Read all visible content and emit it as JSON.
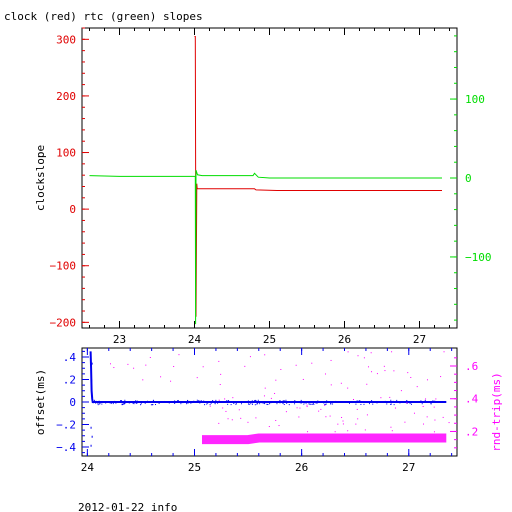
{
  "figure": {
    "title": "clock (red) rtc (green) slopes",
    "footer": "2012-01-22 info",
    "colors": {
      "clock": "#e00000",
      "rtc": "#00dd00",
      "offset": "#0000ee",
      "rtt": "#ff00ff",
      "axis": "#000000"
    }
  },
  "chart_data": [
    {
      "type": "line",
      "title": "clock (red) rtc (green) slopes",
      "xlabel": "",
      "ylabel": "clockslope",
      "y2label": "",
      "xlim": [
        22.5,
        27.5
      ],
      "ylim": [
        -210,
        320
      ],
      "y2lim": [
        -190,
        190
      ],
      "xticks": [
        23,
        24,
        25,
        26,
        27
      ],
      "yticks": [
        -200,
        -100,
        0,
        100,
        200,
        300
      ],
      "y2ticks": [
        -100,
        0,
        100
      ],
      "grid": false,
      "series": [
        {
          "color": "#e00000",
          "axis": "left",
          "x": [
            24.0,
            24.01,
            24.02,
            24.03,
            24.035,
            24.04,
            24.3,
            24.6,
            24.8,
            24.82,
            25.1,
            25.5,
            26.0,
            26.5,
            27.0,
            27.3
          ],
          "y": [
            305,
            305,
            -190,
            45,
            38,
            36,
            36,
            36,
            36,
            34,
            33,
            33,
            33,
            33,
            33,
            33
          ]
        },
        {
          "color": "#00dd00",
          "axis": "right",
          "x": [
            22.6,
            23.0,
            23.5,
            24.0,
            24.01,
            24.015,
            24.02,
            24.04,
            24.1,
            24.5,
            24.78,
            24.8,
            24.85,
            25.0,
            25.5,
            26.0,
            26.5,
            27.0,
            27.3
          ],
          "y": [
            3,
            2,
            2,
            2,
            2,
            -185,
            10,
            4,
            3,
            3,
            3,
            6,
            1,
            0,
            0,
            0,
            0,
            0,
            0
          ]
        }
      ]
    },
    {
      "type": "scatter",
      "title": "",
      "xlabel": "",
      "ylabel": "offset(ms)",
      "y2label": "rnd-trip(ms)",
      "xlim": [
        23.95,
        27.45
      ],
      "ylim": [
        -0.48,
        0.48
      ],
      "y2lim": [
        0.05,
        0.71
      ],
      "xticks": [
        24,
        25,
        26,
        27
      ],
      "yticks": [
        -0.4,
        -0.2,
        0,
        0.2,
        0.4
      ],
      "y2ticks": [
        0.2,
        0.4,
        0.6
      ],
      "grid": false,
      "series": [
        {
          "color": "#0000ee",
          "axis": "left",
          "x": [
            24.03,
            24.035,
            24.04,
            24.045,
            24.05,
            24.1,
            24.5,
            25.0,
            25.5,
            26.0,
            26.5,
            27.0,
            27.35
          ],
          "y": [
            0.45,
            0.3,
            0.1,
            0.03,
            0.0,
            0.0,
            0.0,
            0.0,
            0.0,
            0.0,
            0.0,
            0.0,
            0.0
          ]
        },
        {
          "color": "#ff00ff",
          "axis": "right",
          "x": [
            25.07,
            25.5,
            25.6,
            26.0,
            26.5,
            27.0,
            27.35
          ],
          "y": [
            0.15,
            0.15,
            0.16,
            0.16,
            0.16,
            0.16,
            0.16
          ]
        }
      ]
    }
  ]
}
